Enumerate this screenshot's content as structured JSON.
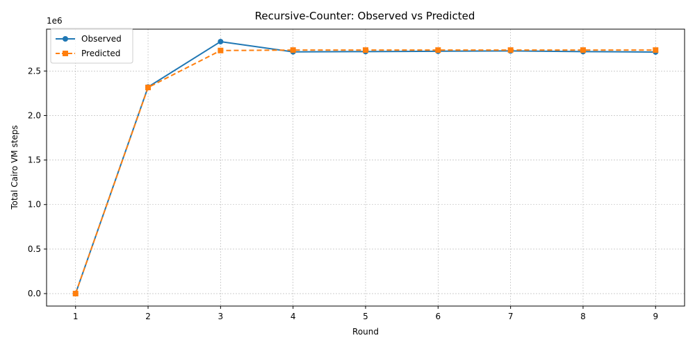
{
  "chart_data": {
    "type": "line",
    "title": "Recursive-Counter: Observed vs Predicted",
    "xlabel": "Round",
    "ylabel": "Total Cairo VM steps",
    "y_offset_label": "1e6",
    "x": [
      1,
      2,
      3,
      4,
      5,
      6,
      7,
      8,
      9
    ],
    "xlim": [
      0.6,
      9.4
    ],
    "ylim": [
      -140000,
      2970000
    ],
    "x_ticks": [
      1,
      2,
      3,
      4,
      5,
      6,
      7,
      8,
      9
    ],
    "y_ticks": [
      0,
      500000,
      1000000,
      1500000,
      2000000,
      2500000
    ],
    "y_tick_labels": [
      "0.0",
      "0.5",
      "1.0",
      "1.5",
      "2.0",
      "2.5"
    ],
    "grid": true,
    "legend_position": "upper-left",
    "series": [
      {
        "name": "Observed",
        "values": [
          0,
          2320000,
          2830000,
          2715000,
          2718000,
          2722000,
          2725000,
          2718000,
          2713000
        ],
        "color": "#1f77b4",
        "line_style": "solid",
        "marker": "circle"
      },
      {
        "name": "Predicted",
        "values": [
          0,
          2315000,
          2730000,
          2735000,
          2735000,
          2735000,
          2735000,
          2735000,
          2735000
        ],
        "color": "#ff7f0e",
        "line_style": "dashed",
        "marker": "square"
      }
    ]
  }
}
